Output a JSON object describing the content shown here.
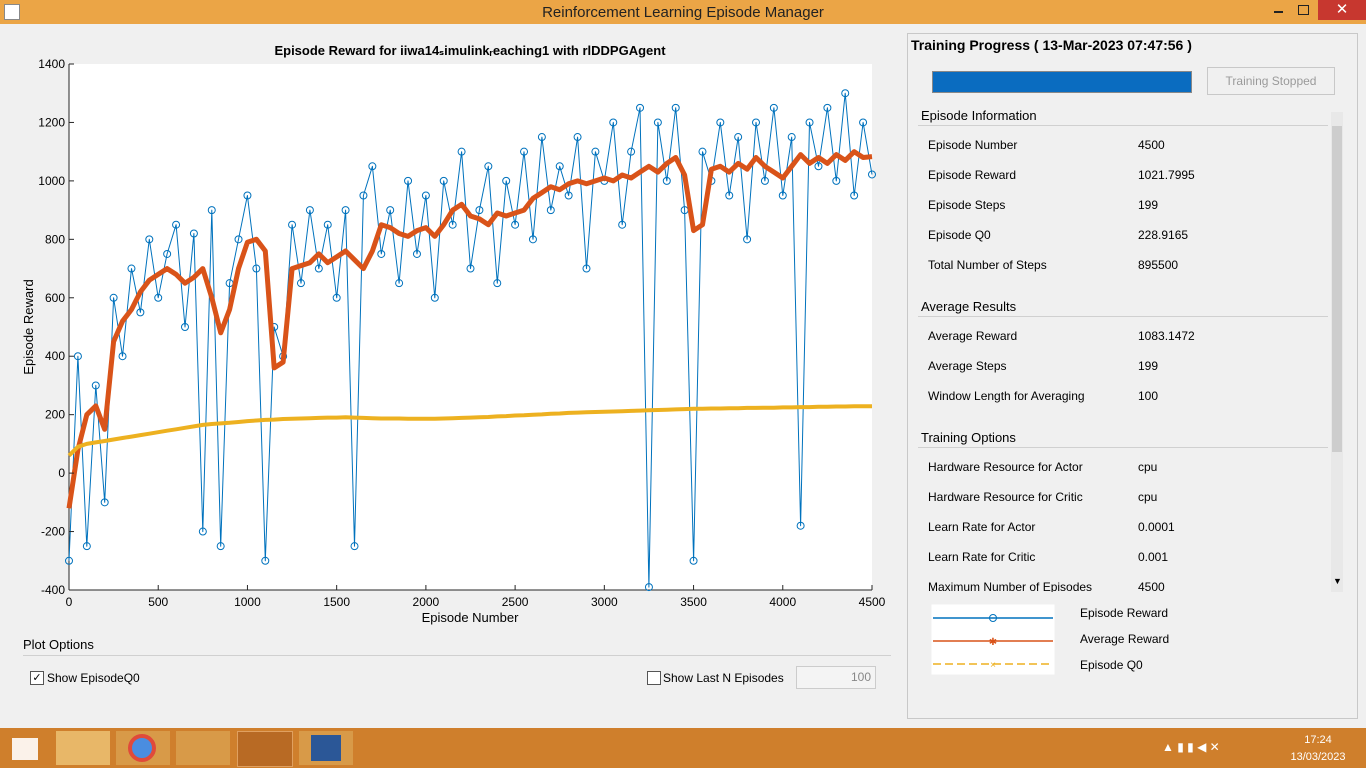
{
  "window": {
    "title": "Reinforcement Learning Episode Manager"
  },
  "chart_data": {
    "type": "line",
    "title": "Episode Reward for iiwa14ₛimulinkᵣeaching1 with rlDDPGAgent",
    "x_label": "Episode Number",
    "y_label": "Episode Reward",
    "xlim": [
      0,
      4500
    ],
    "ylim": [
      -400,
      1400
    ],
    "xticks": [
      0,
      500,
      1000,
      1500,
      2000,
      2500,
      3000,
      3500,
      4000,
      4500
    ],
    "yticks": [
      -400,
      -200,
      0,
      200,
      400,
      600,
      800,
      1000,
      1200,
      1400
    ],
    "grid": false,
    "x": [
      0,
      50,
      100,
      150,
      200,
      250,
      300,
      350,
      400,
      450,
      500,
      550,
      600,
      650,
      700,
      750,
      800,
      850,
      900,
      950,
      1000,
      1050,
      1100,
      1150,
      1200,
      1250,
      1300,
      1350,
      1400,
      1450,
      1500,
      1550,
      1600,
      1650,
      1700,
      1750,
      1800,
      1850,
      1900,
      1950,
      2000,
      2050,
      2100,
      2150,
      2200,
      2250,
      2300,
      2350,
      2400,
      2450,
      2500,
      2550,
      2600,
      2650,
      2700,
      2750,
      2800,
      2850,
      2900,
      2950,
      3000,
      3050,
      3100,
      3150,
      3200,
      3250,
      3300,
      3350,
      3400,
      3450,
      3500,
      3550,
      3600,
      3650,
      3700,
      3750,
      3800,
      3850,
      3900,
      3950,
      4000,
      4050,
      4100,
      4150,
      4200,
      4250,
      4300,
      4350,
      4400,
      4450,
      4500
    ],
    "series": [
      {
        "name": "Episode Reward",
        "color": "#0072bd",
        "marker": "circle",
        "values": [
          -300,
          400,
          -250,
          300,
          -100,
          600,
          400,
          700,
          550,
          800,
          600,
          750,
          850,
          500,
          820,
          -200,
          900,
          -250,
          650,
          800,
          950,
          700,
          -300,
          500,
          400,
          850,
          650,
          900,
          700,
          850,
          600,
          900,
          -250,
          950,
          1050,
          750,
          900,
          650,
          1000,
          750,
          950,
          600,
          1000,
          850,
          1100,
          700,
          900,
          1050,
          650,
          1000,
          850,
          1100,
          800,
          1150,
          900,
          1050,
          950,
          1150,
          700,
          1100,
          1000,
          1200,
          850,
          1100,
          1250,
          -390,
          1200,
          1000,
          1250,
          900,
          -300,
          1100,
          1000,
          1200,
          950,
          1150,
          800,
          1200,
          1000,
          1250,
          950,
          1150,
          -180,
          1200,
          1050,
          1250,
          1000,
          1300,
          950,
          1200,
          1022
        ]
      },
      {
        "name": "Average Reward",
        "color": "#d95319",
        "marker": "asterisk",
        "values": [
          -120,
          80,
          200,
          230,
          150,
          450,
          520,
          560,
          620,
          660,
          680,
          700,
          680,
          650,
          670,
          700,
          600,
          480,
          560,
          700,
          790,
          800,
          760,
          360,
          380,
          700,
          710,
          720,
          750,
          720,
          740,
          760,
          730,
          700,
          760,
          850,
          840,
          820,
          810,
          830,
          840,
          810,
          850,
          900,
          920,
          880,
          870,
          850,
          890,
          880,
          890,
          900,
          940,
          960,
          980,
          970,
          990,
          1000,
          990,
          1000,
          1010,
          1000,
          1020,
          1010,
          1030,
          1050,
          1030,
          1060,
          1080,
          1020,
          830,
          850,
          1040,
          1050,
          1030,
          1060,
          1040,
          1080,
          1050,
          1030,
          1010,
          1050,
          1090,
          1060,
          1080,
          1060,
          1090,
          1070,
          1100,
          1080,
          1083
        ]
      },
      {
        "name": "Episode Q0",
        "color": "#edb120",
        "marker": "x",
        "values": [
          60,
          90,
          100,
          105,
          110,
          115,
          120,
          125,
          130,
          135,
          140,
          145,
          150,
          155,
          160,
          165,
          168,
          170,
          172,
          175,
          178,
          180,
          182,
          183,
          185,
          186,
          187,
          188,
          189,
          190,
          190,
          191,
          190,
          189,
          188,
          187,
          187,
          187,
          186,
          186,
          186,
          186,
          187,
          188,
          189,
          190,
          191,
          192,
          194,
          195,
          197,
          198,
          200,
          201,
          203,
          204,
          206,
          207,
          208,
          209,
          210,
          211,
          212,
          213,
          214,
          215,
          216,
          217,
          218,
          219,
          220,
          220,
          221,
          221,
          222,
          222,
          223,
          223,
          224,
          224,
          225,
          225,
          226,
          226,
          227,
          227,
          228,
          228,
          229,
          229,
          229
        ]
      }
    ]
  },
  "panel": {
    "heading": "Training Progress ( 13-Mar-2023 07:47:56 )",
    "button": "Training Stopped",
    "sections": [
      {
        "title": "Episode Information",
        "rows": [
          [
            "Episode Number",
            "4500"
          ],
          [
            "Episode Reward",
            "1021.7995"
          ],
          [
            "Episode Steps",
            "199"
          ],
          [
            "Episode Q0",
            "228.9165"
          ],
          [
            "Total Number of Steps",
            "895500"
          ]
        ]
      },
      {
        "title": "Average Results",
        "rows": [
          [
            "Average Reward",
            "1083.1472"
          ],
          [
            "Average Steps",
            "199"
          ],
          [
            "Window Length for Averaging",
            "100"
          ]
        ]
      },
      {
        "title": "Training Options",
        "rows": [
          [
            "Hardware Resource for Actor",
            "cpu"
          ],
          [
            "Hardware Resource for Critic",
            "cpu"
          ],
          [
            "Learn Rate for Actor",
            "0.0001"
          ],
          [
            "Learn Rate for Critic",
            "0.001"
          ],
          [
            "Maximum Number of Episodes",
            "4500"
          ]
        ]
      }
    ]
  },
  "plot_options": {
    "title": "Plot Options",
    "show_q0": "Show EpisodeQ0",
    "show_last_n": "Show Last N Episodes",
    "last_n": "100"
  },
  "taskbar": {
    "time": "17:24",
    "date": "13/03/2023"
  }
}
